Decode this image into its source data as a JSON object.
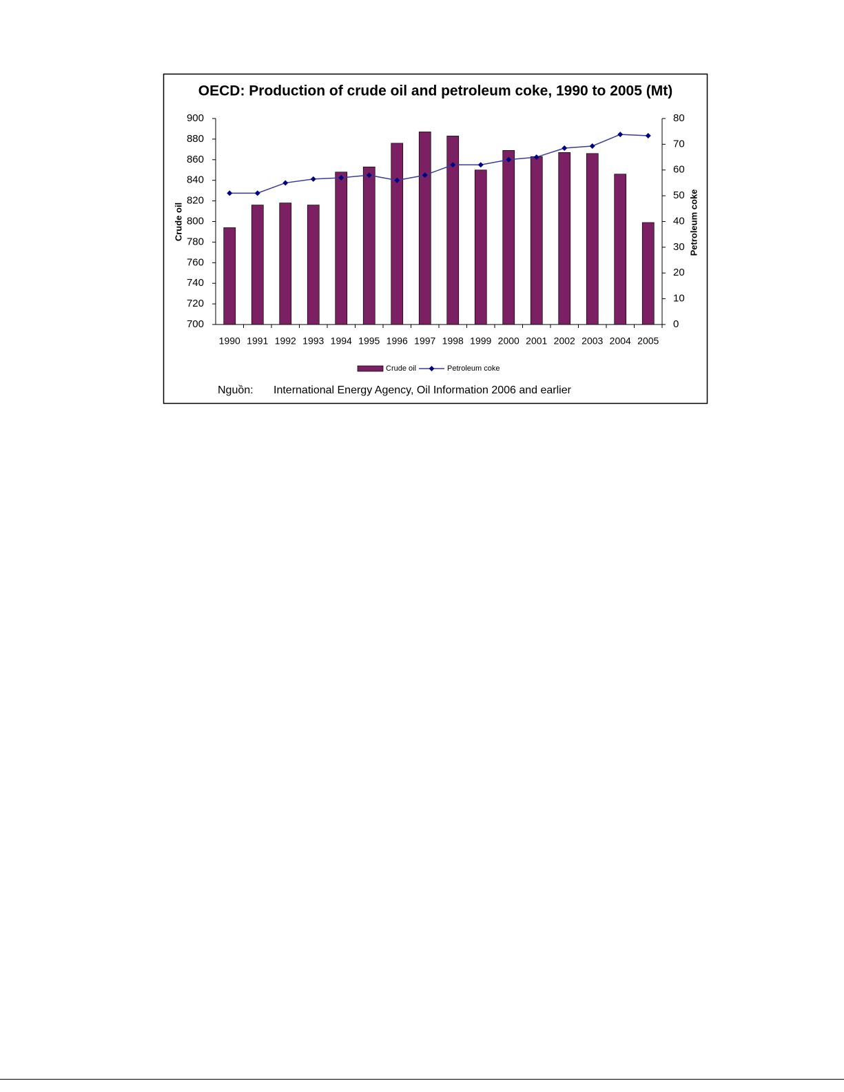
{
  "chart_data": {
    "type": "bar",
    "title": "OECD: Production of crude oil and petroleum coke, 1990 to 2005 (Mt)",
    "categories": [
      "1990",
      "1991",
      "1992",
      "1993",
      "1994",
      "1995",
      "1996",
      "1997",
      "1998",
      "1999",
      "2000",
      "2001",
      "2002",
      "2003",
      "2004",
      "2005"
    ],
    "series": [
      {
        "name": "Crude oil",
        "type": "bar",
        "color": "#7b2062",
        "values": [
          794,
          816,
          818,
          816,
          848,
          853,
          876,
          887,
          883,
          850,
          869,
          863,
          867,
          866,
          846,
          799
        ]
      },
      {
        "name": "Petroleum coke",
        "type": "line",
        "axis": "y2",
        "color": "#3a3a9c",
        "marker_color": "#000080",
        "values": [
          51,
          51,
          55,
          56.5,
          57,
          58,
          56,
          58,
          62,
          62,
          64,
          65,
          68.5,
          69.3,
          73.8,
          73.3
        ]
      }
    ],
    "ylabel": "Crude oil",
    "y2label": "Petroleum coke",
    "ylim": [
      700,
      900
    ],
    "yticks": [
      700,
      720,
      740,
      760,
      780,
      800,
      820,
      840,
      860,
      880,
      900
    ],
    "y2lim": [
      0,
      80
    ],
    "y2ticks": [
      0,
      10,
      20,
      30,
      40,
      50,
      60,
      70,
      80
    ],
    "grid": false,
    "legend": "bottom",
    "source_label": "Nguồn:",
    "source": "International Energy Agency, Oil Information 2006 and earlier"
  }
}
